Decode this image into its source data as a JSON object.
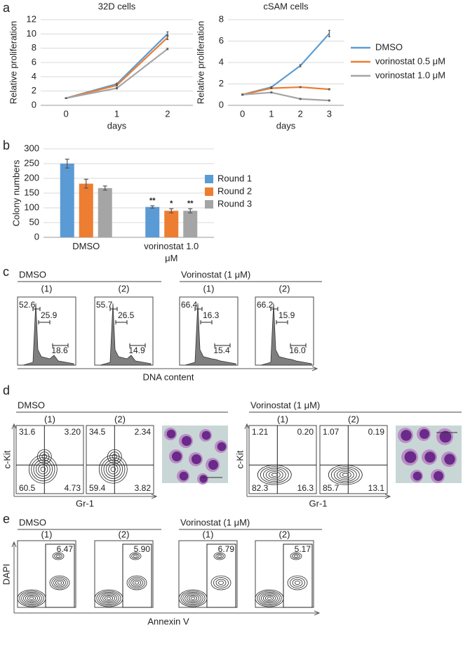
{
  "chart_data": [
    {
      "type": "line",
      "panel": "a",
      "title": "32D cells",
      "x_label": "days",
      "y_label": "Relative proliferation",
      "categories": [
        "0",
        "1",
        "2"
      ],
      "ylim": [
        0,
        12
      ],
      "yticks": [
        0,
        2,
        4,
        6,
        8,
        10,
        12
      ],
      "grid": true,
      "series": [
        {
          "color": "#5b9bd5",
          "values": [
            1.0,
            3.0,
            10.0
          ],
          "errors": [
            0.05,
            0.1,
            0.3
          ]
        },
        {
          "color": "#ed7d31",
          "values": [
            1.0,
            2.8,
            9.5
          ],
          "errors": [
            0.05,
            0.1,
            0.3
          ]
        },
        {
          "color": "#a5a5a5",
          "values": [
            1.0,
            2.4,
            7.9
          ],
          "errors": [
            0.05,
            0.1,
            0.1
          ]
        }
      ]
    },
    {
      "type": "line",
      "title": "cSAM cells",
      "x_label": "days",
      "y_label": "Relative proliferation",
      "categories": [
        "0",
        "1",
        "2",
        "3"
      ],
      "ylim": [
        0,
        8
      ],
      "yticks": [
        0,
        2,
        4,
        6,
        8
      ],
      "grid": true,
      "legend": "right",
      "series": [
        {
          "name": "DMSO",
          "color": "#5b9bd5",
          "values": [
            1.0,
            1.7,
            3.7,
            6.7
          ],
          "errors": [
            0.05,
            0.05,
            0.1,
            0.3
          ]
        },
        {
          "name": "vorinostat 0.5 μM",
          "color": "#ed7d31",
          "values": [
            1.0,
            1.6,
            1.7,
            1.5
          ],
          "errors": [
            0.05,
            0.05,
            0.05,
            0.05
          ]
        },
        {
          "name": "vorinostat 1.0 μM",
          "color": "#a5a5a5",
          "values": [
            1.0,
            1.2,
            0.6,
            0.45
          ],
          "errors": [
            0.05,
            0.05,
            0.05,
            0.05
          ]
        }
      ]
    },
    {
      "type": "bar",
      "panel": "b",
      "y_label": "Colony numbers",
      "categories": [
        "DMSO",
        "vorinostat 1.0 μM"
      ],
      "ylim": [
        0,
        300
      ],
      "yticks": [
        0,
        50,
        100,
        150,
        200,
        250,
        300
      ],
      "grid": true,
      "legend": "right",
      "series": [
        {
          "name": "Round 1",
          "color": "#5b9bd5",
          "values": [
            250,
            103
          ],
          "errors": [
            15,
            4
          ],
          "significance": [
            null,
            "**"
          ]
        },
        {
          "name": "Round 2",
          "color": "#ed7d31",
          "values": [
            182,
            90
          ],
          "errors": [
            15,
            7
          ],
          "significance": [
            null,
            "*"
          ]
        },
        {
          "name": "Round 3",
          "color": "#a5a5a5",
          "values": [
            167,
            90
          ],
          "errors": [
            7,
            7
          ],
          "significance": [
            null,
            "**"
          ]
        }
      ]
    }
  ],
  "panels": {
    "c": {
      "panel": "c",
      "x_label": "DNA content",
      "groups": [
        {
          "title": "DMSO",
          "samples": [
            {
              "label": "(1)",
              "gates": [
                "52.6",
                "25.9",
                "18.6"
              ]
            },
            {
              "label": "(2)",
              "gates": [
                "55.7",
                "26.5",
                "14.9"
              ]
            }
          ]
        },
        {
          "title": "Vorinostat (1 μM)",
          "samples": [
            {
              "label": "(1)",
              "gates": [
                "66.4",
                "16.3",
                "15.4"
              ]
            },
            {
              "label": "(2)",
              "gates": [
                "66.2",
                "15.9",
                "16.0"
              ]
            }
          ]
        }
      ]
    },
    "d": {
      "panel": "d",
      "x_label": "Gr-1",
      "y_label": "c-Kit",
      "groups": [
        {
          "title": "DMSO",
          "samples": [
            {
              "label": "(1)",
              "quadrants": [
                "31.6",
                "3.20",
                "60.5",
                "4.73"
              ]
            },
            {
              "label": "(2)",
              "quadrants": [
                "34.5",
                "2.34",
                "59.4",
                "3.82"
              ]
            }
          ]
        },
        {
          "title": "Vorinostat (1 μM)",
          "samples": [
            {
              "label": "(1)",
              "quadrants": [
                "1.21",
                "0.20",
                "82.3",
                "16.3"
              ]
            },
            {
              "label": "(2)",
              "quadrants": [
                "1.07",
                "0.19",
                "85.7",
                "13.1"
              ]
            }
          ]
        }
      ]
    },
    "e": {
      "panel": "e",
      "x_label": "Annexin V",
      "y_label": "DAPI",
      "groups": [
        {
          "title": "DMSO",
          "samples": [
            {
              "label": "(1)",
              "gate": "6.47"
            },
            {
              "label": "(2)",
              "gate": "5.90"
            }
          ]
        },
        {
          "title": "Vorinostat (1 μM)",
          "samples": [
            {
              "label": "(1)",
              "gate": "6.79"
            },
            {
              "label": "(2)",
              "gate": "5.17"
            }
          ]
        }
      ]
    }
  }
}
